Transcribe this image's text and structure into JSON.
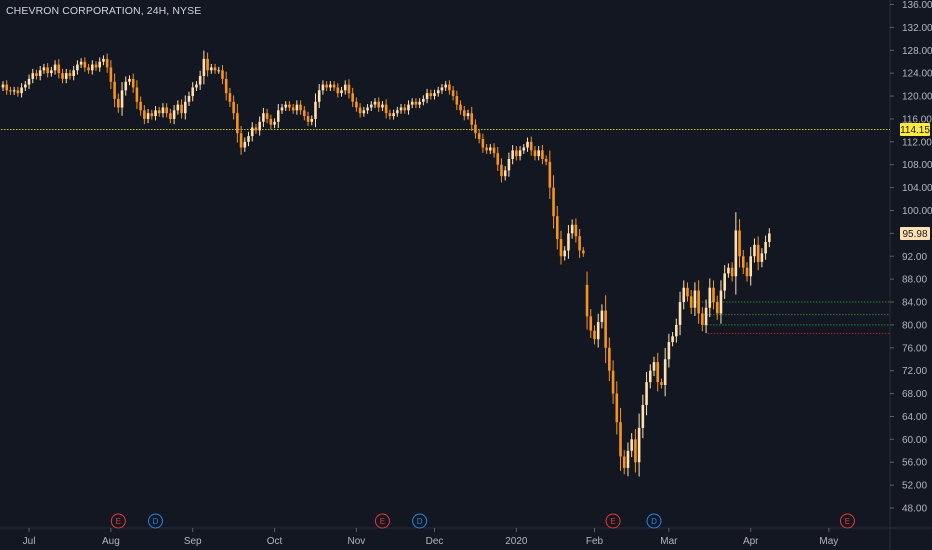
{
  "header": {
    "title": "CHEVRON CORPORATION, 24H, NYSE"
  },
  "colors": {
    "background": "#131722",
    "up": "#ffe0b2",
    "down": "#f7931e",
    "axis_text": "#b2b5be",
    "yellow_line": "#c8c800",
    "green_line": "#2e7d32",
    "red_line": "#b71c1c",
    "earnings": "#e53935",
    "dividend": "#1e88e5",
    "price_tag": "#ffeb3b"
  },
  "chart_data": {
    "type": "candlestick",
    "title": "CHEVRON CORPORATION, 24H, NYSE",
    "ylim": [
      46,
      137
    ],
    "y_ticks": [
      "136.00",
      "132.00",
      "128.00",
      "124.00",
      "120.00",
      "116.00",
      "112.00",
      "108.00",
      "104.00",
      "100.00",
      "96.00",
      "92.00",
      "88.00",
      "84.00",
      "80.00",
      "76.00",
      "72.00",
      "68.00",
      "64.00",
      "60.00",
      "56.00",
      "52.00",
      "48.00"
    ],
    "x_ticks": [
      "Jul",
      "Aug",
      "Sep",
      "Oct",
      "Nov",
      "Dec",
      "2020",
      "Feb",
      "Mar",
      "Apr",
      "May"
    ],
    "x_tick_index": [
      7,
      29,
      51,
      73,
      95,
      116,
      138,
      159,
      179,
      201,
      222
    ],
    "price_labels": [
      {
        "value": 114.15,
        "text": "114.15",
        "color": "#ffeb3b",
        "text_color": "#131722"
      },
      {
        "value": 95.98,
        "text": "95.98",
        "color": "#ffe0b2",
        "text_color": "#131722"
      }
    ],
    "horizontal_lines": [
      {
        "value": 114.15,
        "color": "#c8c800",
        "from_index": 0
      },
      {
        "value": 84.0,
        "color": "#2e7d32",
        "from_index": 186
      },
      {
        "value": 81.8,
        "color": "#2e7d32",
        "from_index": 189
      },
      {
        "value": 80.0,
        "color": "#2e7d32",
        "from_index": 189
      },
      {
        "value": 78.5,
        "color": "#b71c1c",
        "from_index": 190
      }
    ],
    "events": [
      {
        "type": "earnings",
        "label": "E",
        "index": 31
      },
      {
        "type": "dividend",
        "label": "D",
        "index": 41
      },
      {
        "type": "earnings",
        "label": "E",
        "index": 102
      },
      {
        "type": "dividend",
        "label": "D",
        "index": 112
      },
      {
        "type": "earnings",
        "label": "E",
        "index": 164
      },
      {
        "type": "dividend",
        "label": "D",
        "index": 175
      },
      {
        "type": "earnings",
        "label": "E",
        "index": 227
      }
    ],
    "closes": [
      122.0,
      121.0,
      120.8,
      121.0,
      120.5,
      121.5,
      122.0,
      123.0,
      124.0,
      123.5,
      124.5,
      125.0,
      124.0,
      124.5,
      125.5,
      124.0,
      123.0,
      124.0,
      123.5,
      124.5,
      125.5,
      126.0,
      125.0,
      124.5,
      125.5,
      125.0,
      126.0,
      126.5,
      125.0,
      122.5,
      119.5,
      118.0,
      121.0,
      122.5,
      123.0,
      121.5,
      119.0,
      117.5,
      116.0,
      117.0,
      116.5,
      117.5,
      117.0,
      118.0,
      117.0,
      116.0,
      117.5,
      118.5,
      117.0,
      119.0,
      120.0,
      121.5,
      122.0,
      123.5,
      126.5,
      124.5,
      125.0,
      124.5,
      124.5,
      123.0,
      120.5,
      119.0,
      117.0,
      113.5,
      111.0,
      112.0,
      113.0,
      114.5,
      114.0,
      115.5,
      117.0,
      116.0,
      115.0,
      115.5,
      117.5,
      118.0,
      118.5,
      118.0,
      117.5,
      118.5,
      117.5,
      116.5,
      115.5,
      116.0,
      119.0,
      121.0,
      122.0,
      121.5,
      122.0,
      121.5,
      120.5,
      121.0,
      122.0,
      120.5,
      119.0,
      118.0,
      117.0,
      117.5,
      118.0,
      118.5,
      119.0,
      118.0,
      118.5,
      117.0,
      116.5,
      117.0,
      117.5,
      118.0,
      117.5,
      118.5,
      119.0,
      118.5,
      119.0,
      119.5,
      120.5,
      120.0,
      120.5,
      121.0,
      121.5,
      122.0,
      121.0,
      120.0,
      118.5,
      117.5,
      116.5,
      117.0,
      115.0,
      113.5,
      112.5,
      111.0,
      110.5,
      111.0,
      110.0,
      108.0,
      106.0,
      107.0,
      109.0,
      110.5,
      109.5,
      110.5,
      111.0,
      112.0,
      110.5,
      109.5,
      110.5,
      109.0,
      108.5,
      104.0,
      99.0,
      95.0,
      92.0,
      93.0,
      96.0,
      97.5,
      95.5,
      93.0,
      92.5,
      81.5,
      79.0,
      77.5,
      80.5,
      82.5,
      76.0,
      72.0,
      68.0,
      63.0,
      57.0,
      55.0,
      58.0,
      60.0,
      56.0,
      62.0,
      66.0,
      70.0,
      72.0,
      73.5,
      70.0,
      69.5,
      74.0,
      77.0,
      78.0,
      80.0,
      84.0,
      86.5,
      85.0,
      83.0,
      86.0,
      82.0,
      80.0,
      83.0,
      86.5,
      84.0,
      82.0,
      86.0,
      89.0,
      90.0,
      88.5,
      96.5,
      92.0,
      90.0,
      88.5,
      92.0,
      94.0,
      91.0,
      92.5,
      94.5,
      95.98
    ],
    "opens": [
      121.5,
      122.0,
      121.0,
      120.8,
      121.0,
      120.5,
      121.5,
      122.0,
      123.0,
      124.0,
      123.5,
      124.5,
      125.0,
      124.0,
      124.5,
      125.5,
      124.0,
      123.0,
      124.0,
      123.5,
      124.5,
      125.5,
      126.0,
      125.0,
      124.5,
      125.5,
      125.0,
      126.0,
      126.5,
      125.0,
      122.5,
      119.5,
      118.0,
      121.0,
      122.5,
      123.0,
      121.5,
      119.0,
      117.5,
      116.0,
      117.0,
      116.5,
      117.5,
      117.0,
      118.0,
      117.0,
      116.0,
      117.5,
      118.5,
      117.0,
      119.0,
      120.0,
      121.5,
      122.0,
      123.5,
      126.5,
      124.5,
      125.0,
      124.5,
      124.5,
      123.0,
      120.5,
      119.0,
      117.0,
      113.5,
      111.0,
      112.0,
      113.0,
      114.5,
      114.0,
      115.5,
      117.0,
      116.0,
      115.0,
      115.5,
      117.5,
      118.0,
      118.5,
      118.0,
      117.5,
      118.5,
      117.5,
      116.5,
      115.5,
      116.0,
      119.0,
      121.0,
      122.0,
      121.5,
      122.0,
      121.5,
      120.5,
      121.0,
      122.0,
      120.5,
      119.0,
      118.0,
      117.0,
      117.5,
      118.0,
      118.5,
      119.0,
      118.0,
      118.5,
      117.0,
      116.5,
      117.0,
      117.5,
      118.0,
      117.5,
      118.5,
      119.0,
      118.5,
      119.0,
      119.5,
      120.5,
      120.0,
      120.5,
      121.0,
      121.5,
      122.0,
      121.0,
      120.0,
      118.5,
      117.5,
      116.5,
      117.0,
      115.0,
      113.5,
      112.5,
      111.0,
      110.5,
      111.0,
      110.0,
      108.0,
      106.0,
      107.0,
      109.0,
      110.5,
      109.5,
      110.5,
      111.0,
      112.0,
      110.5,
      109.5,
      110.5,
      109.0,
      108.5,
      104.0,
      99.0,
      95.0,
      92.0,
      93.0,
      96.0,
      97.5,
      95.5,
      93.0,
      87.0,
      81.5,
      79.0,
      77.5,
      80.5,
      82.5,
      76.0,
      72.0,
      68.0,
      63.0,
      57.0,
      55.0,
      58.0,
      60.0,
      56.0,
      62.0,
      66.0,
      70.0,
      72.0,
      73.5,
      70.0,
      69.5,
      74.0,
      77.0,
      78.0,
      80.0,
      84.0,
      86.5,
      85.0,
      83.0,
      86.0,
      82.0,
      80.0,
      83.0,
      86.5,
      84.0,
      82.0,
      86.0,
      89.0,
      90.0,
      88.5,
      96.5,
      92.0,
      90.0,
      88.5,
      92.0,
      94.0,
      91.0,
      92.5,
      94.5
    ]
  }
}
